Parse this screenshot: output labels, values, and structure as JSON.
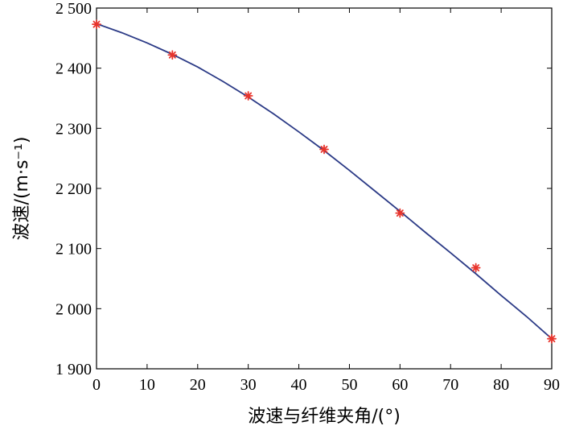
{
  "chart_data": {
    "type": "line",
    "xlabel": "波速与纤维夹角/(°)",
    "ylabel": "波速/(m·s⁻¹)",
    "xlim": [
      0,
      90
    ],
    "ylim": [
      1900,
      2500
    ],
    "x_ticks": [
      0,
      10,
      20,
      30,
      40,
      50,
      60,
      70,
      80,
      90
    ],
    "x_tick_labels": [
      "0",
      "10",
      "20",
      "30",
      "40",
      "50",
      "60",
      "70",
      "80",
      "90"
    ],
    "y_ticks": [
      1900,
      2000,
      2100,
      2200,
      2300,
      2400,
      2500
    ],
    "y_tick_labels": [
      "1 900",
      "2 000",
      "2 100",
      "2 200",
      "2 300",
      "2 400",
      "2 500"
    ],
    "grid": false,
    "legend": "none",
    "series": [
      {
        "type": "scatter",
        "marker": "asterisk",
        "color": "#e8342c",
        "x": [
          0,
          15,
          30,
          45,
          60,
          75,
          90
        ],
        "y": [
          2473,
          2422,
          2354,
          2265,
          2159,
          2068,
          1950
        ]
      },
      {
        "type": "line",
        "color": "#2b3a86",
        "x": [
          0,
          5,
          10,
          15,
          20,
          25,
          30,
          35,
          40,
          45,
          50,
          55,
          60,
          65,
          70,
          75,
          80,
          85,
          90
        ],
        "y": [
          2474,
          2459,
          2442,
          2423,
          2402,
          2378,
          2352,
          2324,
          2294,
          2263,
          2230,
          2196,
          2162,
          2127,
          2093,
          2058,
          2022,
          1987,
          1950
        ]
      }
    ]
  }
}
